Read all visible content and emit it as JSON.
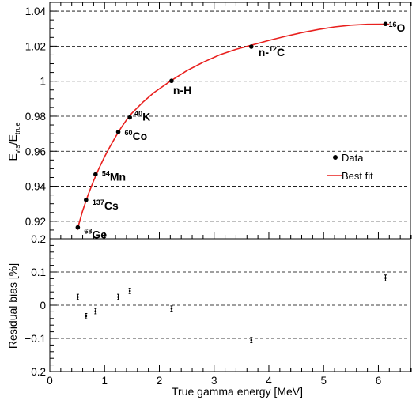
{
  "chart_data": [
    {
      "type": "scatter",
      "ylabel_main": "E",
      "ylabel_sub1": "vis",
      "ylabel_mid": "/E",
      "ylabel_sub2": "true",
      "ylim": [
        0.91,
        1.045
      ],
      "xlim": [
        0,
        6.6
      ],
      "grid": "horizontal dashed",
      "yticks": [
        0.92,
        0.94,
        0.96,
        0.98,
        1,
        1.02,
        1.04
      ],
      "ytick_labels": [
        "0.92",
        "0.94",
        "0.96",
        "0.98",
        "1",
        "1.02",
        "1.04"
      ],
      "series": [
        {
          "name": "Data",
          "color": "#000000",
          "points": [
            {
              "x": 0.511,
              "y": 0.9165,
              "label_sup": "68",
              "label_main": "Ge"
            },
            {
              "x": 0.662,
              "y": 0.9322,
              "label_sup": "137",
              "label_main": "Cs"
            },
            {
              "x": 0.835,
              "y": 0.9468,
              "label_sup": "54",
              "label_main": "Mn"
            },
            {
              "x": 1.25,
              "y": 0.971,
              "label_sup": "60",
              "label_main": "Co"
            },
            {
              "x": 1.461,
              "y": 0.9793,
              "label_sup": "40",
              "label_main": "K"
            },
            {
              "x": 2.223,
              "y": 1.0002,
              "label_sup": "",
              "label_main": "n-H"
            },
            {
              "x": 3.68,
              "y": 1.0197,
              "label_sup": "12",
              "label_pre": "n-",
              "label_main": "C"
            },
            {
              "x": 6.13,
              "y": 1.0327,
              "label_sup": "16",
              "label_main": "O"
            }
          ]
        },
        {
          "name": "Best fit",
          "color": "#e8201e",
          "curve": [
            [
              0.5,
              0.915
            ],
            [
              0.6,
              0.926
            ],
            [
              0.7,
              0.9352
            ],
            [
              0.8,
              0.9432
            ],
            [
              0.9,
              0.9503
            ],
            [
              1.0,
              0.9568
            ],
            [
              1.1,
              0.9627
            ],
            [
              1.2,
              0.9682
            ],
            [
              1.3,
              0.9733
            ],
            [
              1.4,
              0.9778
            ],
            [
              1.5,
              0.9818
            ],
            [
              1.7,
              0.988
            ],
            [
              1.9,
              0.9935
            ],
            [
              2.2,
              1.0
            ],
            [
              2.5,
              1.006
            ],
            [
              2.8,
              1.0108
            ],
            [
              3.1,
              1.015
            ],
            [
              3.4,
              1.0182
            ],
            [
              3.7,
              1.0207
            ],
            [
              4.0,
              1.0233
            ],
            [
              4.3,
              1.0256
            ],
            [
              4.6,
              1.0277
            ],
            [
              4.9,
              1.0295
            ],
            [
              5.2,
              1.031
            ],
            [
              5.5,
              1.032
            ],
            [
              5.8,
              1.0325
            ],
            [
              6.1,
              1.0326
            ],
            [
              6.2,
              1.0325
            ]
          ]
        }
      ],
      "legend": {
        "placement": "right",
        "entries": [
          {
            "label": "Data",
            "kind": "marker"
          },
          {
            "label": "Best fit",
            "kind": "line"
          }
        ]
      }
    },
    {
      "type": "scatter",
      "ylabel": "Residual bias [%]",
      "xlabel": "True gamma energy [MeV]",
      "xlim": [
        0,
        6.6
      ],
      "ylim": [
        -0.2,
        0.2
      ],
      "grid": "horizontal dashed",
      "yticks": [
        -0.2,
        -0.1,
        0,
        0.1,
        0.2
      ],
      "ytick_labels": [
        "−0.2",
        "−0.1",
        "0",
        "0.1",
        "0.2"
      ],
      "xticks": [
        0,
        1,
        2,
        3,
        4,
        5,
        6
      ],
      "xtick_labels": [
        "0",
        "1",
        "2",
        "3",
        "4",
        "5",
        "6"
      ],
      "series": [
        {
          "name": "Residual",
          "color": "#000000",
          "points": [
            {
              "x": 0.511,
              "y": 0.025,
              "err": 0.008
            },
            {
              "x": 0.662,
              "y": -0.033,
              "err": 0.008
            },
            {
              "x": 0.835,
              "y": -0.018,
              "err": 0.008
            },
            {
              "x": 1.25,
              "y": 0.025,
              "err": 0.008
            },
            {
              "x": 1.461,
              "y": 0.043,
              "err": 0.008
            },
            {
              "x": 2.223,
              "y": -0.01,
              "err": 0.008
            },
            {
              "x": 3.68,
              "y": -0.105,
              "err": 0.008
            },
            {
              "x": 6.13,
              "y": 0.082,
              "err": 0.009
            }
          ]
        }
      ]
    }
  ]
}
